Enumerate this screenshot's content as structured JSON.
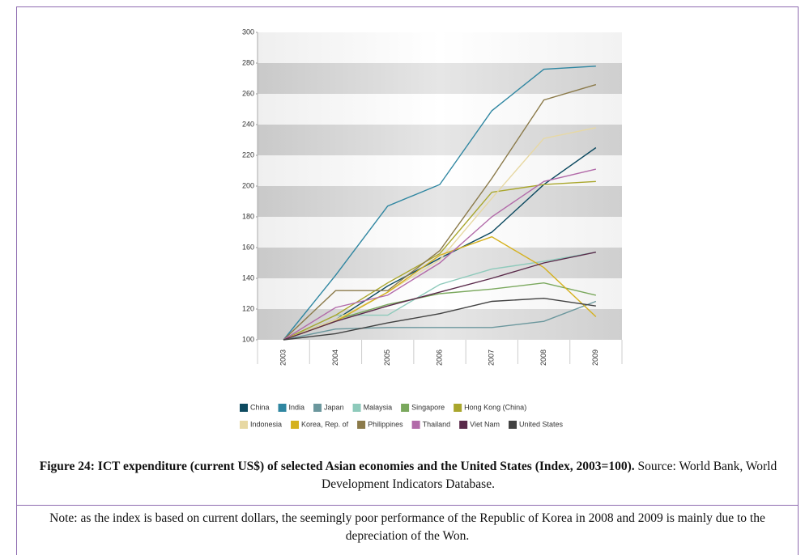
{
  "chart_data": {
    "type": "line",
    "categories": [
      "2003",
      "2004",
      "2005",
      "2006",
      "2007",
      "2008",
      "2009"
    ],
    "ylim": [
      100,
      300
    ],
    "yticks": [
      100,
      120,
      140,
      160,
      180,
      200,
      220,
      240,
      260,
      280,
      300
    ],
    "series": [
      {
        "name": "China",
        "color": "#0d4a60",
        "values": [
          100,
          113,
          135,
          153,
          170,
          201,
          225
        ]
      },
      {
        "name": "India",
        "color": "#2f86a1",
        "values": [
          100,
          142,
          187,
          201,
          249,
          276,
          278
        ]
      },
      {
        "name": "Japan",
        "color": "#6b979d",
        "values": [
          100,
          107,
          108,
          108,
          108,
          112,
          125
        ]
      },
      {
        "name": "Malaysia",
        "color": "#8ecabb",
        "values": [
          100,
          116,
          116,
          136,
          146,
          151,
          157
        ]
      },
      {
        "name": "Singapore",
        "color": "#7aa85d",
        "values": [
          100,
          113,
          123,
          130,
          133,
          137,
          129
        ]
      },
      {
        "name": "Hong Kong (China)",
        "color": "#a9a62c",
        "values": [
          100,
          116,
          137,
          156,
          196,
          201,
          203
        ]
      },
      {
        "name": "Indonesia",
        "color": "#e7d8a3",
        "values": [
          100,
          113,
          131,
          152,
          192,
          231,
          238
        ]
      },
      {
        "name": "Korea, Rep. of",
        "color": "#d5b11e",
        "values": [
          100,
          112,
          131,
          155,
          167,
          147,
          115
        ]
      },
      {
        "name": "Philippines",
        "color": "#8b7a4a",
        "values": [
          100,
          132,
          132,
          158,
          205,
          256,
          266
        ]
      },
      {
        "name": "Thailand",
        "color": "#b26aa9",
        "values": [
          100,
          121,
          129,
          150,
          180,
          203,
          211
        ]
      },
      {
        "name": "Viet Nam",
        "color": "#5a2a4a",
        "values": [
          100,
          112,
          122,
          131,
          140,
          150,
          157
        ]
      },
      {
        "name": "United States",
        "color": "#424242",
        "values": [
          100,
          104,
          111,
          117,
          125,
          127,
          122
        ]
      }
    ],
    "caption_bold": "Figure 24: ICT expenditure (current US$) of selected Asian economies and the United States (Index, 2003=100).",
    "caption_source": "Source: World Bank, World Development Indicators Database.",
    "note": "Note: as the index is based on current dollars, the seemingly poor performance of the Republic of Korea in 2008 and 2009 is mainly due to the depreciation of the Won."
  }
}
